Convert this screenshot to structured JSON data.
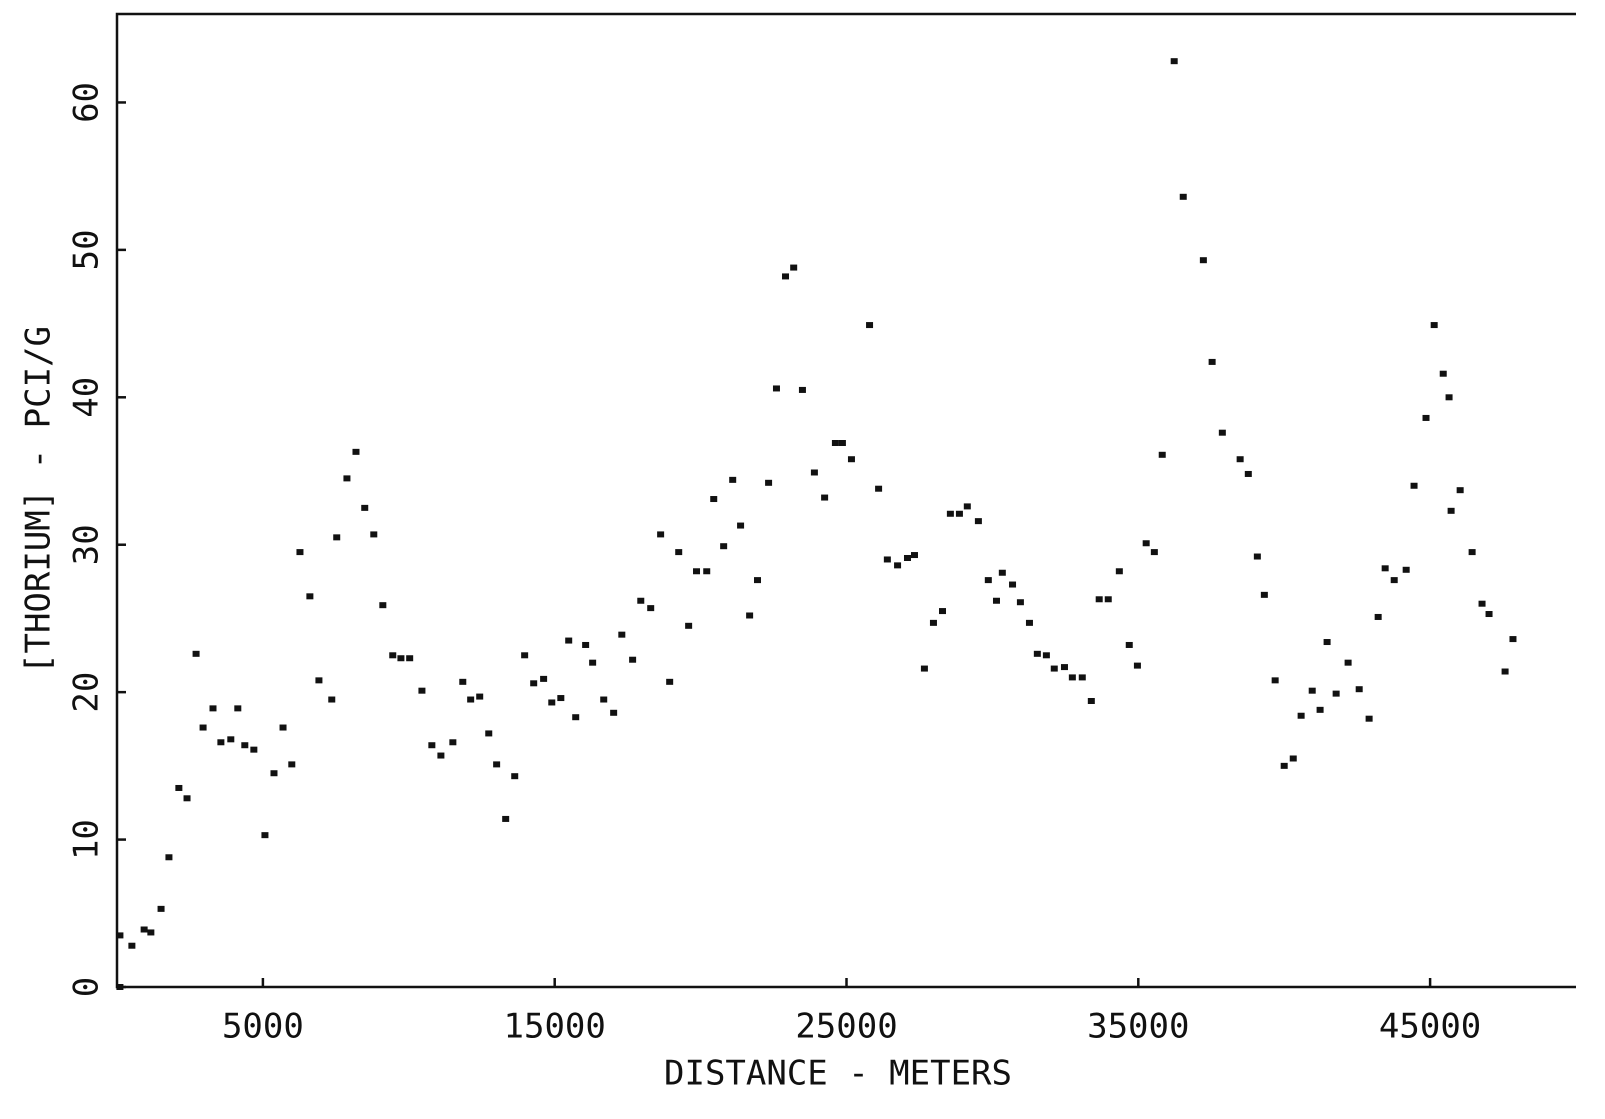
{
  "chart_data": {
    "type": "scatter",
    "xlabel": "DISTANCE - METERS",
    "ylabel": "[THORIUM] - PCI/G",
    "color": "#111111",
    "xlim": [
      0,
      50000
    ],
    "ylim": [
      0,
      66
    ],
    "xticks": [
      5000,
      15000,
      25000,
      35000,
      45000
    ],
    "yticks": [
      0,
      10,
      20,
      30,
      40,
      50,
      60
    ],
    "x": [
      100,
      100,
      510,
      930,
      1160,
      1510,
      1780,
      2120,
      2400,
      2710,
      2950,
      3290,
      3560,
      3900,
      4140,
      4380,
      4690,
      5070,
      5380,
      5690,
      5990,
      6270,
      6610,
      6920,
      7360,
      7530,
      7880,
      8190,
      8490,
      8800,
      9110,
      9450,
      9730,
      10030,
      10450,
      10790,
      11100,
      11510,
      11850,
      12120,
      12430,
      12740,
      13010,
      13320,
      13630,
      13970,
      14280,
      14620,
      14900,
      15210,
      15480,
      15720,
      16060,
      16300,
      16680,
      17020,
      17300,
      17670,
      17950,
      18290,
      18630,
      18940,
      19250,
      19590,
      19860,
      20210,
      20450,
      20790,
      21100,
      21370,
      21680,
      21950,
      22330,
      22600,
      22910,
      23190,
      23490,
      23900,
      24250,
      24620,
      24860,
      25170,
      25790,
      26100,
      26400,
      26750,
      27090,
      27330,
      27670,
      27980,
      28290,
      28560,
      28870,
      29140,
      29520,
      29860,
      30140,
      30340,
      30690,
      30960,
      31270,
      31540,
      31850,
      32120,
      32470,
      32740,
      33080,
      33390,
      33660,
      33970,
      34350,
      34690,
      34970,
      35270,
      35550,
      35820,
      36230,
      36540,
      37230,
      37530,
      37880,
      38490,
      38770,
      39080,
      39320,
      39690,
      40000,
      40310,
      40580,
      40960,
      41230,
      41470,
      41780,
      42190,
      42570,
      42910,
      43220,
      43460,
      43770,
      44180,
      44450,
      44860,
      45140,
      45450,
      45650,
      45720,
      46030,
      46440,
      46780,
      47020,
      47570,
      47840
    ],
    "values": [
      3.5,
      0,
      2.8,
      3.9,
      3.7,
      5.3,
      8.8,
      13.5,
      12.8,
      22.6,
      17.6,
      18.9,
      16.6,
      16.8,
      18.9,
      16.4,
      16.1,
      10.3,
      14.5,
      17.6,
      15.1,
      29.5,
      26.5,
      20.8,
      19.5,
      30.5,
      34.5,
      36.3,
      32.5,
      30.7,
      25.9,
      22.5,
      22.3,
      22.3,
      20.1,
      16.4,
      15.7,
      16.6,
      20.7,
      19.5,
      19.7,
      17.2,
      15.1,
      11.4,
      14.3,
      22.5,
      20.6,
      20.9,
      19.3,
      19.6,
      23.5,
      18.3,
      23.2,
      22.0,
      19.5,
      18.6,
      23.9,
      22.2,
      26.2,
      25.7,
      30.7,
      20.7,
      29.5,
      24.5,
      28.2,
      28.2,
      33.1,
      29.9,
      34.4,
      31.3,
      25.2,
      27.6,
      34.2,
      40.6,
      48.2,
      48.8,
      40.5,
      34.9,
      33.2,
      36.9,
      36.9,
      35.8,
      44.9,
      33.8,
      29.0,
      28.6,
      29.1,
      29.3,
      21.6,
      24.7,
      25.5,
      32.1,
      32.1,
      32.6,
      31.6,
      27.6,
      26.2,
      28.1,
      27.3,
      26.1,
      24.7,
      22.6,
      22.5,
      21.6,
      21.7,
      21.0,
      21.0,
      19.4,
      26.3,
      26.3,
      28.2,
      23.2,
      21.8,
      30.1,
      29.5,
      36.1,
      62.8,
      53.6,
      49.3,
      42.4,
      37.6,
      35.8,
      34.8,
      29.2,
      26.6,
      20.8,
      15.0,
      15.5,
      18.4,
      20.1,
      18.8,
      23.4,
      19.9,
      22.0,
      20.2,
      18.2,
      25.1,
      28.4,
      27.6,
      28.3,
      34.0,
      38.6,
      44.9,
      41.6,
      40.0,
      32.3,
      33.7,
      29.5,
      26.0,
      25.3,
      21.4,
      23.6
    ]
  }
}
